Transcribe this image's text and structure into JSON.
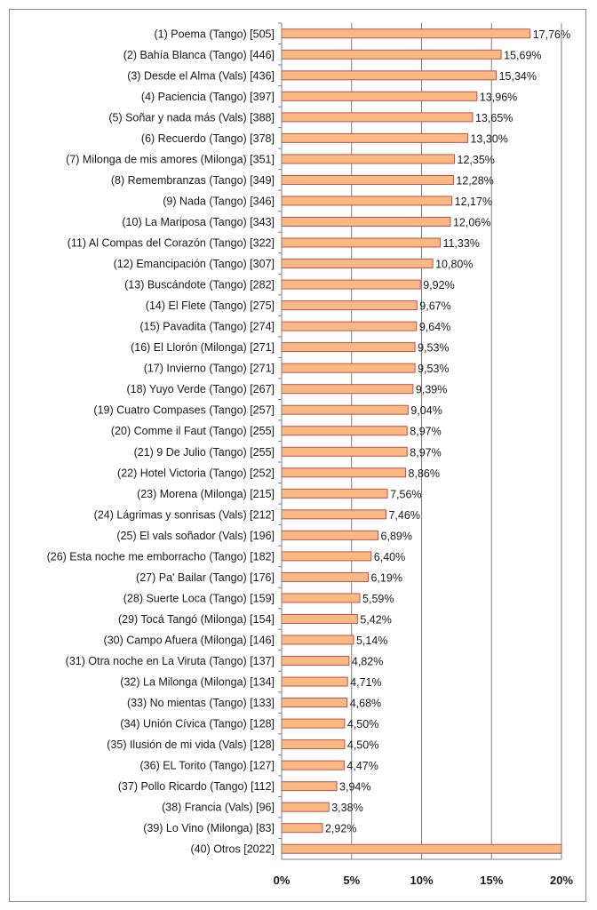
{
  "chart_data": {
    "type": "bar",
    "orientation": "horizontal",
    "title": "",
    "xlabel": "",
    "ylabel": "",
    "xlim": [
      0,
      20
    ],
    "x_ticks": [
      "0%",
      "5%",
      "10%",
      "15%",
      "20%"
    ],
    "grid": "vertical major gridlines",
    "bar_color": "#f9b982",
    "bar_edge_color": "#c0504d",
    "categories": [
      "(1) Poema  (Tango) [505]",
      "(2) Bahía Blanca  (Tango) [446]",
      "(3) Desde el Alma (Vals) [436]",
      "(4) Paciencia  (Tango) [397]",
      "(5) Soñar y nada más (Vals) [388]",
      "(6) Recuerdo  (Tango) [378]",
      "(7) Milonga de mis amores (Milonga) [351]",
      "(8) Remembranzas  (Tango) [349]",
      "(9) Nada  (Tango) [346]",
      "(10) La Mariposa  (Tango) [343]",
      "(11) Al Compas del Corazón  (Tango) [322]",
      "(12) Emancipación  (Tango) [307]",
      "(13) Buscándote  (Tango) [282]",
      "(14) El Flete  (Tango) [275]",
      "(15) Pavadita  (Tango) [274]",
      "(16) El Llorón  (Milonga) [271]",
      "(17) Invierno  (Tango) [271]",
      "(18) Yuyo Verde  (Tango) [267]",
      "(19) Cuatro Compases  (Tango) [257]",
      "(20) Comme il Faut  (Tango) [255]",
      "(21) 9 De Julio  (Tango) [255]",
      "(22) Hotel Victoria  (Tango) [252]",
      "(23) Morena  (Milonga) [215]",
      "(24) Lágrimas y sonrisas  (Vals) [212]",
      "(25) El vals soñador  (Vals) [196]",
      "(26) Esta noche me emborracho  (Tango) [182]",
      "(27) Pa'  Bailar  (Tango) [176]",
      "(28) Suerte Loca  (Tango) [159]",
      "(29) Tocá Tangó  (Milonga) [154]",
      "(30) Campo Afuera  (Milonga) [146]",
      "(31) Otra noche  en La Viruta  (Tango) [137]",
      "(32) La Milonga  (Milonga) [134]",
      "(33) No mientas  (Tango) [133]",
      "(34) Unión Cívica  (Tango) [128]",
      "(35) Ilusión de mi vida  (Vals) [128]",
      "(36) EL Torito  (Tango) [127]",
      "(37) Pollo Ricardo  (Tango) [112]",
      "(38) Francia  (Vals) [96]",
      "(39) Lo Vino  (Milonga) [83]",
      "(40) Otros [2022]"
    ],
    "values": [
      17.76,
      15.69,
      15.34,
      13.96,
      13.65,
      13.3,
      12.35,
      12.28,
      12.17,
      12.06,
      11.33,
      10.8,
      9.92,
      9.67,
      9.64,
      9.53,
      9.53,
      9.39,
      9.04,
      8.97,
      8.97,
      8.86,
      7.56,
      7.46,
      6.89,
      6.4,
      6.19,
      5.59,
      5.42,
      5.14,
      4.82,
      4.71,
      4.68,
      4.5,
      4.5,
      4.47,
      3.94,
      3.38,
      2.92,
      20
    ],
    "data_labels": [
      "17,76%",
      "15,69%",
      "15,34%",
      "13,96%",
      "13,65%",
      "13,30%",
      "12,35%",
      "12,28%",
      "12,17%",
      "12,06%",
      "11,33%",
      "10,80%",
      "9,92%",
      "9,67%",
      "9,64%",
      "9,53%",
      "9,53%",
      "9,39%",
      "9,04%",
      "8,97%",
      "8,97%",
      "8,86%",
      "7,56%",
      "7,46%",
      "6,89%",
      "6,40%",
      "6,19%",
      "5,59%",
      "5,42%",
      "5,14%",
      "4,82%",
      "4,71%",
      "4,68%",
      "4,50%",
      "4,50%",
      "4,47%",
      "3,94%",
      "3,38%",
      "2,92%",
      ""
    ]
  }
}
